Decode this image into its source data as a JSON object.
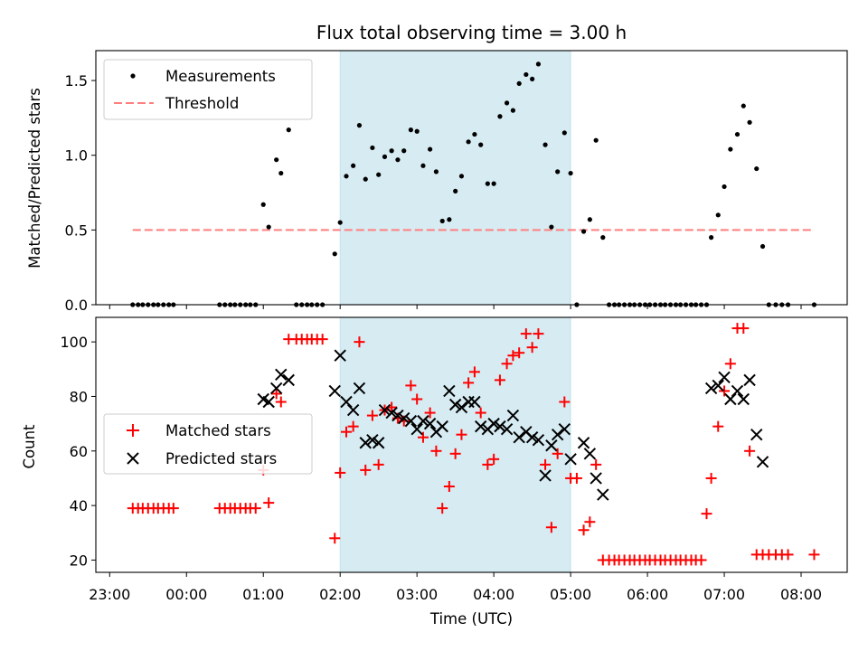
{
  "chart_data": [
    {
      "type": "scatter",
      "title": "Flux total observing time = 3.00 h",
      "xlabel": "",
      "ylabel": "Matched/Predicted stars",
      "xlim": [
        -1.18,
        8.6
      ],
      "ylim": [
        0,
        1.7
      ],
      "yticks": [
        0.0,
        0.5,
        1.0,
        1.5
      ],
      "ytick_labels": [
        "0.0",
        "0.5",
        "1.0",
        "1.5"
      ],
      "grid": false,
      "legend": "top-left",
      "shaded_interval": {
        "start": 2.0,
        "end": 5.0,
        "color": "#add8e6"
      },
      "colors": {
        "measurements": "#000000",
        "threshold": "#ff7f7f"
      },
      "series": [
        {
          "name": "Measurements",
          "style": "dot",
          "x": [
            -0.7,
            -0.63,
            -0.57,
            -0.5,
            -0.43,
            -0.37,
            -0.3,
            -0.23,
            -0.17,
            0.43,
            0.5,
            0.57,
            0.63,
            0.7,
            0.77,
            0.83,
            0.9,
            1.0,
            1.07,
            1.17,
            1.23,
            1.33,
            1.43,
            1.5,
            1.57,
            1.63,
            1.7,
            1.77,
            1.93,
            2.0,
            2.08,
            2.17,
            2.25,
            2.33,
            2.42,
            2.5,
            2.58,
            2.67,
            2.75,
            2.83,
            2.92,
            3.0,
            3.08,
            3.17,
            3.25,
            3.33,
            3.42,
            3.5,
            3.58,
            3.67,
            3.75,
            3.83,
            3.92,
            4.0,
            4.08,
            4.17,
            4.25,
            4.33,
            4.42,
            4.5,
            4.58,
            4.67,
            4.75,
            4.83,
            4.92,
            5.0,
            5.08,
            5.17,
            5.25,
            5.33,
            5.42,
            5.5,
            5.57,
            5.63,
            5.7,
            5.77,
            5.83,
            5.9,
            5.97,
            6.03,
            6.1,
            6.17,
            6.23,
            6.3,
            6.37,
            6.43,
            6.5,
            6.57,
            6.63,
            6.7,
            6.77,
            6.83,
            6.92,
            7.0,
            7.08,
            7.17,
            7.25,
            7.33,
            7.42,
            7.5,
            7.58,
            7.67,
            7.75,
            7.83,
            8.17
          ],
          "y": [
            0,
            0,
            0,
            0,
            0,
            0,
            0,
            0,
            0,
            0,
            0,
            0,
            0,
            0,
            0,
            0,
            0,
            0.67,
            0.52,
            0.97,
            0.88,
            1.17,
            0,
            0,
            0,
            0,
            0,
            0,
            0.34,
            0.55,
            0.86,
            0.93,
            1.2,
            0.84,
            1.05,
            0.87,
            0.99,
            1.03,
            0.97,
            1.03,
            1.17,
            1.16,
            0.93,
            1.04,
            0.89,
            0.56,
            0.57,
            0.76,
            0.86,
            1.09,
            1.14,
            1.07,
            0.81,
            0.81,
            1.26,
            1.35,
            1.3,
            1.48,
            1.54,
            1.51,
            1.61,
            1.07,
            0.52,
            0.89,
            1.15,
            0.88,
            0,
            0.49,
            0.57,
            1.1,
            0.45,
            0,
            0,
            0,
            0,
            0,
            0,
            0,
            0,
            0,
            0,
            0,
            0,
            0,
            0,
            0,
            0,
            0,
            0,
            0,
            0,
            0.45,
            0.6,
            0.79,
            1.04,
            1.14,
            1.33,
            1.22,
            0.91,
            0.39,
            0,
            0,
            0,
            0,
            0
          ]
        },
        {
          "name": "Threshold",
          "style": "dashed-line",
          "x": [
            -0.7,
            8.17
          ],
          "y": [
            0.5,
            0.5
          ]
        }
      ]
    },
    {
      "type": "scatter",
      "title": "",
      "xlabel": "Time (UTC)",
      "ylabel": "Count",
      "xlim": [
        -1.18,
        8.6
      ],
      "ylim": [
        15.5,
        109
      ],
      "yticks": [
        20,
        40,
        60,
        80,
        100
      ],
      "ytick_labels": [
        "20",
        "40",
        "60",
        "80",
        "100"
      ],
      "xticks": [
        -1,
        0,
        1,
        2,
        3,
        4,
        5,
        6,
        7,
        8
      ],
      "xtick_labels": [
        "23:00",
        "00:00",
        "01:00",
        "02:00",
        "03:00",
        "04:00",
        "05:00",
        "06:00",
        "07:00",
        "08:00"
      ],
      "grid": false,
      "legend": "center-left",
      "shaded_interval": {
        "start": 2.0,
        "end": 5.0,
        "color": "#add8e6"
      },
      "colors": {
        "matched": "#ff0000",
        "predicted": "#000000"
      },
      "series": [
        {
          "name": "Matched stars",
          "style": "plus",
          "x": [
            -0.7,
            -0.63,
            -0.57,
            -0.5,
            -0.43,
            -0.37,
            -0.3,
            -0.23,
            -0.17,
            0.43,
            0.5,
            0.57,
            0.63,
            0.7,
            0.77,
            0.83,
            0.9,
            1.0,
            1.07,
            1.17,
            1.23,
            1.33,
            1.43,
            1.5,
            1.57,
            1.63,
            1.7,
            1.77,
            1.93,
            2.0,
            2.08,
            2.17,
            2.25,
            2.33,
            2.42,
            2.5,
            2.58,
            2.67,
            2.75,
            2.83,
            2.92,
            3.0,
            3.08,
            3.17,
            3.25,
            3.33,
            3.42,
            3.5,
            3.58,
            3.67,
            3.75,
            3.83,
            3.92,
            4.0,
            4.08,
            4.17,
            4.25,
            4.33,
            4.42,
            4.5,
            4.58,
            4.67,
            4.75,
            4.83,
            4.92,
            5.0,
            5.08,
            5.17,
            5.25,
            5.33,
            5.42,
            5.5,
            5.57,
            5.63,
            5.7,
            5.77,
            5.83,
            5.9,
            5.97,
            6.03,
            6.1,
            6.17,
            6.23,
            6.3,
            6.37,
            6.43,
            6.5,
            6.57,
            6.63,
            6.7,
            6.77,
            6.83,
            6.92,
            7.0,
            7.08,
            7.17,
            7.25,
            7.33,
            7.42,
            7.5,
            7.58,
            7.67,
            7.75,
            7.83,
            8.17
          ],
          "y": [
            39,
            39,
            39,
            39,
            39,
            39,
            39,
            39,
            39,
            39,
            39,
            39,
            39,
            39,
            39,
            39,
            39,
            53,
            41,
            81,
            78,
            101,
            101,
            101,
            101,
            101,
            101,
            101,
            28,
            52,
            67,
            69,
            100,
            53,
            73,
            55,
            75,
            76,
            72,
            71,
            84,
            79,
            65,
            74,
            60,
            39,
            47,
            59,
            66,
            85,
            89,
            74,
            55,
            57,
            86,
            92,
            95,
            96,
            103,
            98,
            103,
            55,
            32,
            59,
            78,
            50,
            50,
            31,
            34,
            55,
            20,
            20,
            20,
            20,
            20,
            20,
            20,
            20,
            20,
            20,
            20,
            20,
            20,
            20,
            20,
            20,
            20,
            20,
            20,
            20,
            37,
            50,
            69,
            82,
            92,
            105,
            105,
            60,
            22,
            22,
            22,
            22,
            22,
            22,
            22
          ]
        },
        {
          "name": "Predicted stars",
          "style": "x",
          "x": [
            1.0,
            1.07,
            1.17,
            1.23,
            1.33,
            1.93,
            2.0,
            2.08,
            2.17,
            2.25,
            2.33,
            2.42,
            2.5,
            2.58,
            2.67,
            2.75,
            2.83,
            2.92,
            3.0,
            3.08,
            3.17,
            3.25,
            3.33,
            3.42,
            3.5,
            3.58,
            3.67,
            3.75,
            3.83,
            3.92,
            4.0,
            4.08,
            4.17,
            4.25,
            4.33,
            4.42,
            4.5,
            4.58,
            4.67,
            4.75,
            4.83,
            4.92,
            5.0,
            5.17,
            5.25,
            5.33,
            5.42,
            6.83,
            6.92,
            7.0,
            7.08,
            7.17,
            7.25,
            7.33,
            7.42,
            7.5
          ],
          "y": [
            79,
            78,
            83,
            88,
            86,
            82,
            95,
            78,
            75,
            83,
            63,
            64,
            63,
            75,
            74,
            73,
            72,
            71,
            68,
            71,
            70,
            67,
            69,
            82,
            77,
            76,
            78,
            78,
            69,
            68,
            70,
            69,
            68,
            73,
            65,
            67,
            65,
            64,
            51,
            62,
            66,
            68,
            57,
            63,
            59,
            50,
            44,
            83,
            84,
            87,
            79,
            82,
            79,
            86,
            66,
            56
          ]
        }
      ]
    }
  ]
}
